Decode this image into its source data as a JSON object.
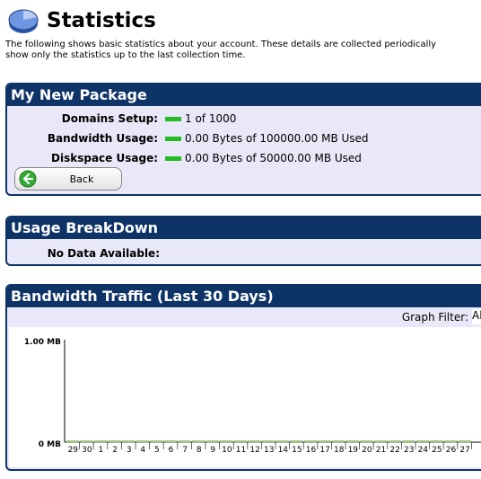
{
  "header": {
    "title": "Statistics",
    "icon": "pie-chart-icon",
    "intro_line1": "The following shows basic statistics about your account. These details are collected periodically",
    "intro_line2": "show only the statistics up to the last collection time."
  },
  "package": {
    "title": "My New Package",
    "rows": [
      {
        "label": "Domains Setup:",
        "value": "1 of 1000"
      },
      {
        "label": "Bandwidth Usage:",
        "value": "0.00 Bytes of 100000.00 MB Used"
      },
      {
        "label": "Diskspace Usage:",
        "value": "0.00 Bytes of 50000.00 MB Used"
      }
    ],
    "back_label": "Back"
  },
  "usage": {
    "title": "Usage BreakDown",
    "no_data": "No Data Available:"
  },
  "traffic": {
    "title": "Bandwidth Traffic (Last 30 Days)",
    "filter_label": "Graph Filter:",
    "filter_value": "All D"
  },
  "chart_data": {
    "type": "bar",
    "categories": [
      "29",
      "30",
      "1",
      "2",
      "3",
      "4",
      "5",
      "6",
      "7",
      "8",
      "9",
      "10",
      "11",
      "12",
      "13",
      "14",
      "15",
      "16",
      "17",
      "18",
      "19",
      "20",
      "21",
      "22",
      "23",
      "24",
      "25",
      "26",
      "27"
    ],
    "values": [
      0,
      0,
      0,
      0,
      0,
      0,
      0,
      0,
      0,
      0,
      0,
      0,
      0,
      0,
      0,
      0,
      0,
      0,
      0,
      0,
      0,
      0,
      0,
      0,
      0,
      0,
      0,
      0,
      0
    ],
    "ytick_labels": [
      "1.00 MB",
      "0 MB"
    ],
    "ylim": [
      0,
      1
    ],
    "grid": false,
    "colors": {
      "axis": "#000000",
      "bar": "#66aa66",
      "bar_fill": "#c8d88a"
    }
  }
}
